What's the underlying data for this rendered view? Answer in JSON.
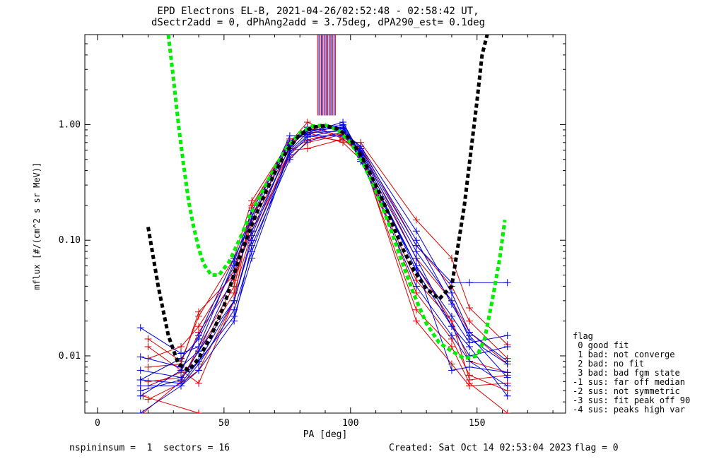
{
  "titles": {
    "line1": "EPD Electrons EL-B, 2021-04-26/02:52:48 - 02:58:42 UT,",
    "line2": "dSectr2add = 0, dPhAng2add = 3.75deg, dPA290_est=   0.1deg"
  },
  "footer": {
    "left": "nspininsum =  1  sectors = 16",
    "created": "Created: Sat Oct 14 02:53:04 2023",
    "flag": "flag = 0"
  },
  "legend": {
    "title": "flag",
    "items": [
      " 0 good fit",
      " 1 bad: not converge",
      " 2 bad: no fit",
      " 3 bad: bad fgm state",
      "-1 sus: far off median",
      "-2 sus: not symmetric",
      "-3 sus: fit peak off 90",
      "-4 sus: peaks high var"
    ]
  },
  "chart_data": {
    "type": "line",
    "xlabel": "PA [deg]",
    "ylabel": "mflux [#/(cm^2 s sr MeV)]",
    "xlim": [
      -5,
      185
    ],
    "ylim": [
      0.0032,
      6
    ],
    "yscale": "log",
    "xticks": [
      0,
      50,
      100,
      150
    ],
    "yticks": [
      0.01,
      0.1,
      1.0
    ],
    "ytick_labels": [
      "0.01",
      "0.10",
      "1.00"
    ],
    "colors": {
      "red": "#dd0000",
      "blue": "#0000dd",
      "green": "#00ee00",
      "black": "#000000"
    },
    "red_series": [
      {
        "x": [
          20,
          33,
          40,
          54,
          61,
          76,
          83,
          97,
          104,
          126,
          140,
          147,
          162
        ],
        "y": [
          0.012,
          0.0075,
          0.0058,
          0.03,
          0.2,
          0.7,
          1.05,
          0.75,
          0.55,
          0.025,
          0.012,
          0.0058,
          0.0032
        ]
      },
      {
        "x": [
          18,
          33,
          40,
          54,
          61,
          76,
          83,
          97,
          104,
          126,
          140,
          147,
          162
        ],
        "y": [
          0.0032,
          0.006,
          0.012,
          0.04,
          0.16,
          0.62,
          0.95,
          0.8,
          0.6,
          0.035,
          0.014,
          0.0068,
          0.005
        ]
      },
      {
        "x": [
          18,
          40
        ],
        "y": [
          0.0045,
          0.0032
        ]
      },
      {
        "x": [
          20,
          33,
          40,
          54,
          61,
          76,
          83,
          97,
          104,
          126,
          140,
          147,
          162
        ],
        "y": [
          0.014,
          0.009,
          0.022,
          0.07,
          0.22,
          0.72,
          0.85,
          0.7,
          0.5,
          0.045,
          0.02,
          0.009,
          0.0072
        ]
      },
      {
        "x": [
          20,
          33,
          40,
          54,
          61,
          76,
          83,
          97,
          104,
          126,
          140,
          147,
          162
        ],
        "y": [
          0.0095,
          0.012,
          0.018,
          0.055,
          0.18,
          0.68,
          0.9,
          0.78,
          0.62,
          0.07,
          0.03,
          0.016,
          0.0085
        ]
      },
      {
        "x": [
          20,
          33,
          40,
          54,
          61,
          76,
          83,
          97,
          104,
          126,
          140,
          147,
          162
        ],
        "y": [
          0.008,
          0.0085,
          0.024,
          0.05,
          0.19,
          0.75,
          0.8,
          0.72,
          0.7,
          0.15,
          0.07,
          0.026,
          0.0125
        ]
      },
      {
        "x": [
          20,
          33,
          40,
          54,
          61,
          76,
          83,
          97,
          104,
          126,
          140,
          147,
          162
        ],
        "y": [
          0.0055,
          0.0072,
          0.016,
          0.045,
          0.14,
          0.58,
          0.74,
          0.85,
          0.65,
          0.09,
          0.04,
          0.02,
          0.0095
        ]
      },
      {
        "x": [
          20,
          33,
          40,
          54,
          61,
          76,
          83,
          97,
          104,
          126,
          140,
          147,
          162
        ],
        "y": [
          0.006,
          0.0065,
          0.011,
          0.035,
          0.12,
          0.52,
          0.7,
          0.82,
          0.52,
          0.06,
          0.02,
          0.0062,
          0.0068
        ]
      },
      {
        "x": [
          20,
          33,
          40,
          54,
          61,
          76,
          83,
          97,
          104,
          126,
          140,
          147,
          162
        ],
        "y": [
          0.0042,
          0.0058,
          0.0075,
          0.03,
          0.1,
          0.6,
          0.62,
          0.75,
          0.58,
          0.02,
          0.0085,
          0.0055,
          0.0058
        ]
      }
    ],
    "blue_series": [
      {
        "x": [
          17,
          33,
          40,
          54,
          61,
          76,
          83,
          97,
          104,
          126,
          140,
          147,
          162
        ],
        "y": [
          0.0175,
          0.0105,
          0.012,
          0.065,
          0.18,
          0.72,
          0.85,
          1.05,
          0.55,
          0.055,
          0.018,
          0.012,
          0.0045
        ]
      },
      {
        "x": [
          17,
          33,
          40,
          54,
          61,
          76,
          83,
          97,
          104,
          126,
          140,
          147,
          162
        ],
        "y": [
          0.0045,
          0.0075,
          0.015,
          0.07,
          0.15,
          0.7,
          0.95,
          0.98,
          0.5,
          0.04,
          0.015,
          0.009,
          0.0055
        ]
      },
      {
        "x": [
          17,
          33,
          40,
          54,
          61,
          76,
          83,
          97,
          104,
          126,
          140,
          147,
          162
        ],
        "y": [
          0.0098,
          0.008,
          0.011,
          0.05,
          0.12,
          0.65,
          0.9,
          0.93,
          0.48,
          0.06,
          0.022,
          0.013,
          0.015
        ]
      },
      {
        "x": [
          17,
          33,
          40,
          54,
          61,
          76,
          83,
          97,
          104,
          126,
          140,
          147,
          162
        ],
        "y": [
          0.0075,
          0.0065,
          0.009,
          0.03,
          0.1,
          0.55,
          0.78,
          0.92,
          0.62,
          0.1,
          0.028,
          0.015,
          0.0065
        ]
      },
      {
        "x": [
          17,
          33,
          40,
          54,
          61,
          76,
          83,
          97,
          104,
          126,
          140,
          147,
          162
        ],
        "y": [
          0.0055,
          0.0055,
          0.0085,
          0.025,
          0.08,
          0.6,
          0.85,
          0.88,
          0.58,
          0.08,
          0.03,
          0.014,
          0.0085
        ]
      },
      {
        "x": [
          17,
          33,
          40,
          54,
          61,
          76,
          83,
          97,
          104,
          126,
          140,
          147,
          162
        ],
        "y": [
          0.0032,
          0.0055,
          0.0075,
          0.02,
          0.09,
          0.5,
          0.72,
          0.86,
          0.65,
          0.12,
          0.035,
          0.016,
          0.009
        ]
      },
      {
        "x": [
          17,
          33,
          40,
          54,
          61,
          76,
          83,
          97,
          104,
          126,
          140,
          147,
          162
        ],
        "y": [
          0.0062,
          0.0058,
          0.009,
          0.022,
          0.07,
          0.58,
          0.8,
          0.8,
          0.6,
          0.09,
          0.043,
          0.043,
          0.043
        ]
      },
      {
        "x": [
          17,
          33,
          40,
          54,
          61,
          76,
          83,
          97,
          104,
          126,
          140,
          147,
          162
        ],
        "y": [
          0.005,
          0.0062,
          0.011,
          0.03,
          0.11,
          0.66,
          0.88,
          0.95,
          0.54,
          0.06,
          0.0075,
          0.008,
          0.0072
        ]
      },
      {
        "x": [
          17,
          33,
          40,
          54,
          61,
          76,
          83,
          97,
          104,
          126,
          140,
          147,
          162
        ],
        "y": [
          0.0062,
          0.0095,
          0.014,
          0.06,
          0.16,
          0.8,
          0.82,
          1.0,
          0.56,
          0.07,
          0.018,
          0.01,
          0.012
        ]
      }
    ],
    "red_vertical_lines_x": [
      87,
      88,
      89,
      90,
      91,
      92,
      93,
      94
    ],
    "blue_vertical_lines_x": [
      87.5,
      88.5,
      89.5,
      90.5,
      91.5,
      92.5,
      93.5
    ],
    "vertical_lines_y_range": [
      1.2,
      6
    ],
    "black_fit_curve": {
      "x": [
        20,
        24,
        28,
        32,
        36,
        40,
        45,
        50,
        55,
        60,
        65,
        70,
        75,
        80,
        85,
        90,
        95,
        100,
        105,
        110,
        115,
        120,
        125,
        130,
        135,
        140,
        145,
        150,
        152,
        154
      ],
      "y": [
        0.13,
        0.04,
        0.015,
        0.0085,
        0.0075,
        0.0095,
        0.015,
        0.027,
        0.06,
        0.12,
        0.22,
        0.38,
        0.6,
        0.82,
        0.95,
        0.98,
        0.92,
        0.75,
        0.5,
        0.3,
        0.17,
        0.09,
        0.055,
        0.038,
        0.031,
        0.04,
        0.2,
        1.6,
        4,
        6
      ]
    },
    "green_fit_curve": {
      "x": [
        28,
        30,
        32,
        34,
        36,
        38,
        40,
        42,
        45,
        48,
        52,
        56,
        60,
        65,
        70,
        75,
        80,
        85,
        90,
        95,
        100,
        105,
        110,
        115,
        120,
        125,
        130,
        135,
        140,
        145,
        150,
        153,
        156,
        159,
        161
      ],
      "y": [
        6,
        2.5,
        1.0,
        0.45,
        0.22,
        0.13,
        0.085,
        0.062,
        0.05,
        0.05,
        0.065,
        0.1,
        0.16,
        0.26,
        0.42,
        0.64,
        0.85,
        0.97,
        0.99,
        0.9,
        0.7,
        0.46,
        0.27,
        0.14,
        0.068,
        0.034,
        0.019,
        0.013,
        0.011,
        0.0095,
        0.01,
        0.014,
        0.03,
        0.07,
        0.15
      ]
    }
  }
}
